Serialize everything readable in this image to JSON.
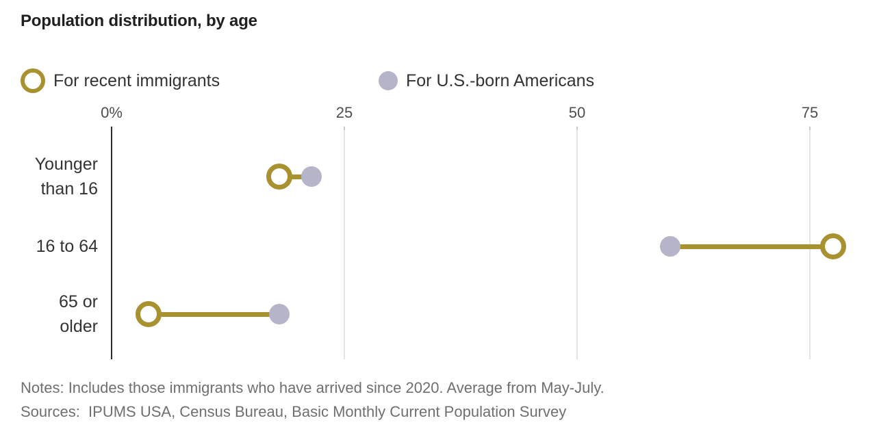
{
  "title": "Population distribution, by age",
  "legend": [
    {
      "label": "For recent immigrants",
      "marker": "open-circle",
      "color": "#a8912f"
    },
    {
      "label": "For U.S.-born Americans",
      "marker": "filled-circle",
      "color": "#b5b4c8"
    }
  ],
  "chart_data": {
    "type": "scatter",
    "subtype": "horizontal-dumbbell-dot-plot",
    "categories": [
      "Younger than 16",
      "16 to 64",
      "65 or older"
    ],
    "series": [
      {
        "name": "For recent immigrants",
        "marker": "open-circle",
        "color": "#a8912f",
        "values": [
          18,
          77.5,
          4
        ]
      },
      {
        "name": "For U.S.-born Americans",
        "marker": "filled-circle",
        "color": "#b5b4c8",
        "values": [
          21.5,
          60,
          18
        ]
      }
    ],
    "x_ticks": [
      "0%",
      "25",
      "50",
      "75"
    ],
    "x_tick_values": [
      0,
      25,
      50,
      75
    ],
    "xlim": [
      0,
      82
    ],
    "unit": "percent",
    "grid": "vertical-light",
    "connector_color": "#a8912f",
    "legend_position": "top"
  },
  "notes": "Notes: Includes those immigrants who have arrived since 2020. Average from May-July.",
  "sources": "Sources:  IPUMS USA, Census Bureau, Basic Monthly Current Population Survey",
  "colors": {
    "gold": "#a8912f",
    "lavender_gray": "#b5b4c8",
    "axis": "#2b2b2b",
    "gridline": "#e4e4e4",
    "title_text": "#1f1f1f",
    "label_text": "#333333",
    "tick_text": "#4d4d4d",
    "note_text": "#6f6f6f",
    "background": "#ffffff"
  }
}
